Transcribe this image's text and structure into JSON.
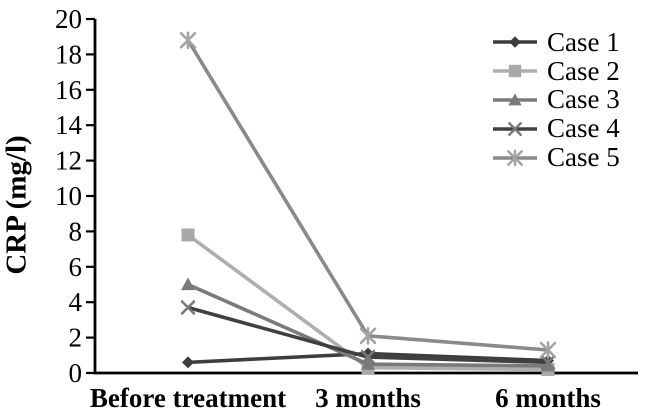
{
  "figure": {
    "background": "#ffffff",
    "axis_color": "#000000",
    "text_color": "#000000"
  },
  "chart_data": {
    "type": "line",
    "title": "",
    "xlabel": "",
    "ylabel": "CRP (mg/l)",
    "categories": [
      "Before treatment",
      "3 months",
      "6 months"
    ],
    "ylim": [
      0,
      20
    ],
    "ytick_step": 2,
    "yticks": [
      0,
      2,
      4,
      6,
      8,
      10,
      12,
      14,
      16,
      18,
      20
    ],
    "grid": false,
    "legend_position": "top-right",
    "series": [
      {
        "name": "Case 1",
        "marker": "diamond",
        "line_color": "#3d3d3d",
        "marker_color": "#3d3d3d",
        "values": [
          0.6,
          1.1,
          0.7
        ]
      },
      {
        "name": "Case 2",
        "marker": "square",
        "line_color": "#aeaeae",
        "marker_color": "#a9a9a9",
        "values": [
          7.8,
          0.3,
          0.2
        ]
      },
      {
        "name": "Case 3",
        "marker": "triangle",
        "line_color": "#7a7a7a",
        "marker_color": "#7a7a7a",
        "values": [
          5.0,
          0.5,
          0.4
        ]
      },
      {
        "name": "Case 4",
        "marker": "x",
        "line_color": "#404040",
        "marker_color": "#787878",
        "values": [
          3.7,
          0.9,
          0.6
        ]
      },
      {
        "name": "Case 5",
        "marker": "asterisk",
        "line_color": "#8a8a8a",
        "marker_color": "#a3a3a3",
        "values": [
          18.8,
          2.1,
          1.3
        ]
      }
    ]
  }
}
